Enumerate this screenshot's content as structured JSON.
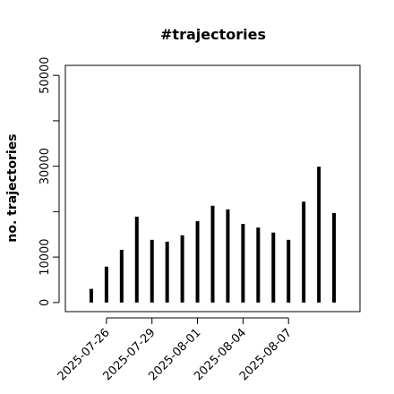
{
  "chart_data": {
    "type": "bar",
    "title": "#trajectories",
    "y_label": "no. trajectories",
    "x": [
      "2025-07-25",
      "2025-07-26",
      "2025-07-27",
      "2025-07-28",
      "2025-07-29",
      "2025-07-30",
      "2025-07-31",
      "2025-08-01",
      "2025-08-02",
      "2025-08-03",
      "2025-08-04",
      "2025-08-05",
      "2025-08-06",
      "2025-08-07",
      "2025-08-08",
      "2025-08-09",
      "2025-08-10"
    ],
    "values": [
      3000,
      7900,
      11600,
      18900,
      13800,
      13400,
      14800,
      17900,
      21300,
      20500,
      17300,
      16500,
      15400,
      13800,
      22200,
      29900,
      19700
    ],
    "color": "#000000",
    "xlim": [
      "2025-07-23T07:00",
      "2025-08-11T17:00"
    ],
    "xticks": [
      "2025-07-26",
      "2025-07-29",
      "2025-08-01",
      "2025-08-04",
      "2025-08-07"
    ],
    "ylim": [
      -2000,
      52200
    ],
    "yticks": [
      0,
      10000,
      {
        "value": 20000,
        "label": null
      },
      30000,
      {
        "value": 40000,
        "label": null
      },
      50000
    ]
  }
}
